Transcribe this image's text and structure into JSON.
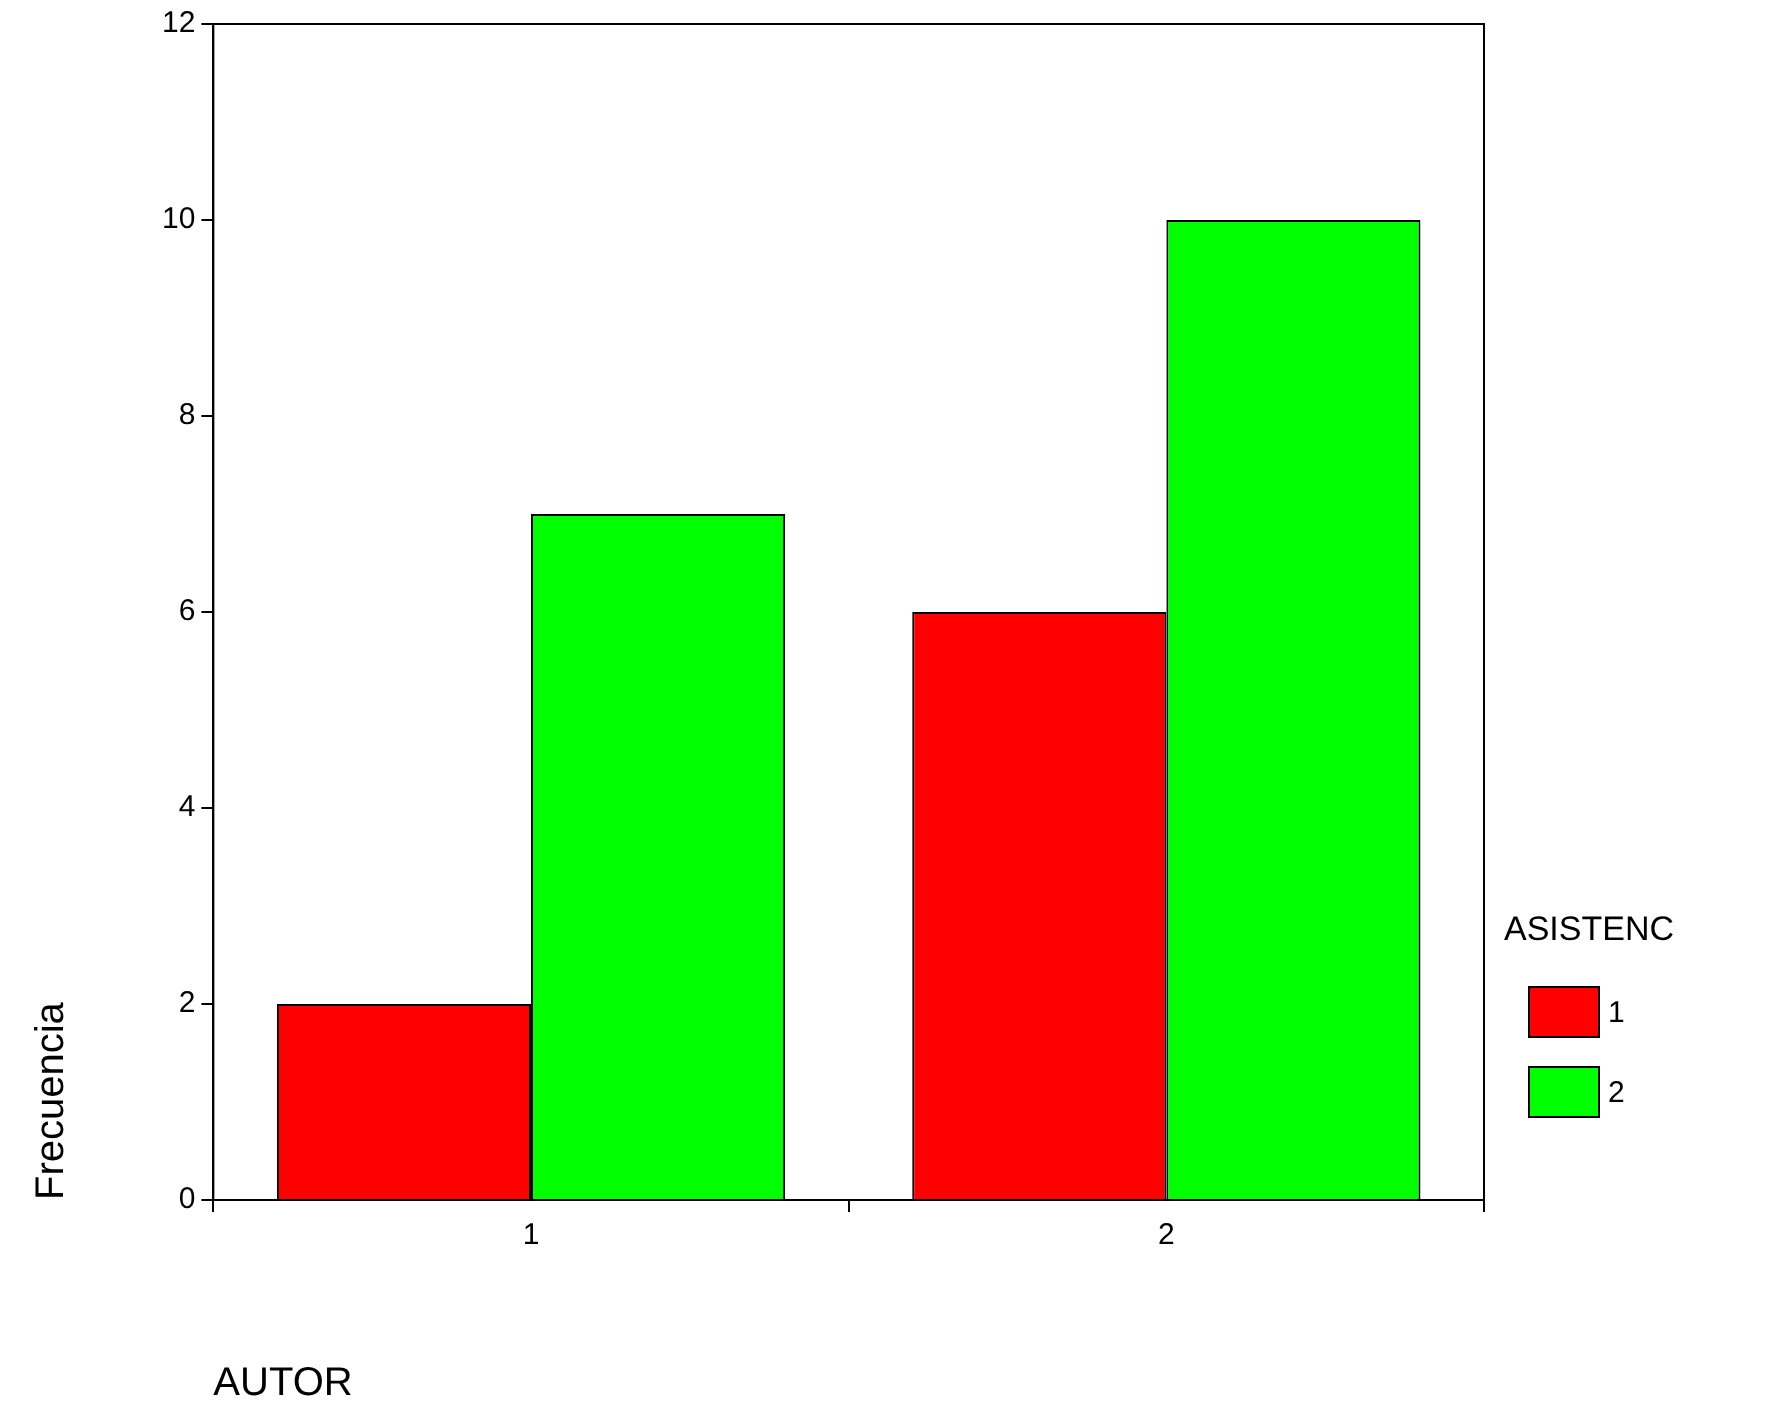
{
  "chart_data": {
    "type": "bar",
    "xlabel": "AUTOR",
    "ylabel": "Frecuencia",
    "legend_title": "ASISTENC",
    "categories": [
      "1",
      "2"
    ],
    "series": [
      {
        "name": "1",
        "color": "#ff0000",
        "values": [
          2,
          6
        ]
      },
      {
        "name": "2",
        "color": "#00ff00",
        "values": [
          7,
          10
        ]
      }
    ],
    "ylim": [
      0,
      12
    ],
    "yticks": [
      0,
      2,
      4,
      6,
      8,
      10,
      12
    ],
    "grid": false,
    "legend": "right"
  }
}
